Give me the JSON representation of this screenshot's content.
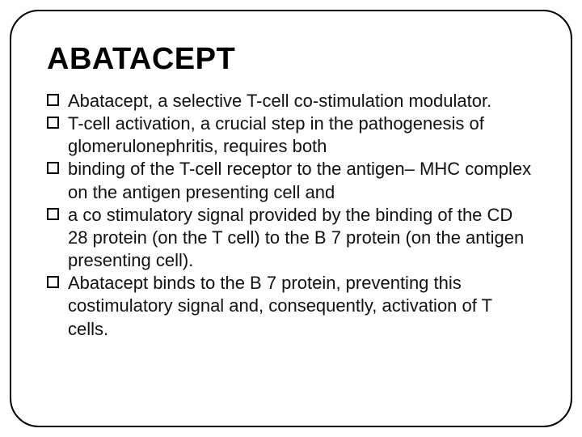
{
  "slide": {
    "title": "ABATACEPT",
    "title_fontsize": 38,
    "title_color": "#000000",
    "body_fontsize": 22,
    "body_color": "#111111",
    "background_color": "#ffffff",
    "frame_border_color": "#000000",
    "frame_border_width": 2,
    "frame_border_radius": 36,
    "bullet_box_size": 15,
    "bullet_box_border": "#000000",
    "items": [
      "Abatacept, a selective T-cell co-stimulation modulator.",
      "T-cell activation, a crucial step in the pathogenesis of glomerulonephritis, requires both",
      "binding of the T-cell receptor to the antigen– MHC complex on the antigen presenting cell and",
      "a co stimulatory signal provided by the binding of the CD 28 protein (on the T cell) to the B 7 protein (on the antigen presenting cell).",
      "Abatacept binds to the B 7 protein, preventing this costimulatory signal and, consequently, activation of T cells."
    ]
  }
}
